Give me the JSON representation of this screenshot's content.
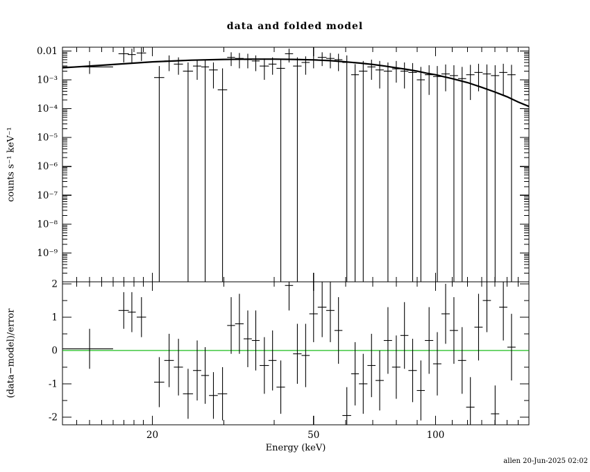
{
  "signature": "allen 20-Jun-2025 02:02",
  "colors": {
    "foreground": "#000000",
    "background": "#ffffff",
    "zero_line": "#00b400"
  },
  "chart_data": [
    {
      "type": "scatter",
      "panel": "data",
      "title": "data and folded model",
      "ylabel": "counts s⁻¹ keV⁻¹",
      "xscale": "log",
      "yscale": "log",
      "xlim": [
        12,
        170
      ],
      "ylim": [
        1e-10,
        0.0135
      ],
      "x_major_ticks": [
        {
          "v": 20,
          "label": "20"
        },
        {
          "v": 50,
          "label": "50"
        },
        {
          "v": 100,
          "label": "100"
        }
      ],
      "x_minor_ticks": [
        13,
        14,
        15,
        16,
        17,
        18,
        19,
        30,
        40,
        60,
        70,
        80,
        90,
        110,
        120,
        130,
        140,
        150,
        160
      ],
      "y_major_ticks": [
        {
          "v": 0.01,
          "label": "0.01"
        },
        {
          "v": 0.001,
          "label": "10⁻³"
        },
        {
          "v": 0.0001,
          "label": "10⁻⁴"
        },
        {
          "v": 1e-05,
          "label": "10⁻⁵"
        },
        {
          "v": 1e-06,
          "label": "10⁻⁶"
        },
        {
          "v": 1e-07,
          "label": "10⁻⁷"
        },
        {
          "v": 1e-08,
          "label": "10⁻⁸"
        },
        {
          "v": 1e-09,
          "label": "10⁻⁹"
        }
      ],
      "points": [
        [
          14,
          2,
          0.0028,
          0.0016,
          0.0045
        ],
        [
          17,
          0.5,
          0.008,
          0.004,
          0.013
        ],
        [
          17.8,
          0.4,
          0.0075,
          0.004,
          0.012
        ],
        [
          18.8,
          0.5,
          0.0085,
          0.0045,
          0.013
        ],
        [
          20.8,
          0.6,
          0.0012,
          1e-12,
          0.003
        ],
        [
          22,
          0.6,
          0.0045,
          0.002,
          0.007
        ],
        [
          23.2,
          0.6,
          0.0035,
          0.0015,
          0.006
        ],
        [
          24.5,
          0.7,
          0.002,
          1e-12,
          0.004
        ],
        [
          25.8,
          0.6,
          0.003,
          0.001,
          0.005
        ],
        [
          27,
          0.6,
          0.0028,
          1e-12,
          0.005
        ],
        [
          28.3,
          0.7,
          0.0022,
          0.0005,
          0.004
        ],
        [
          29.8,
          0.8,
          0.00045,
          1e-12,
          0.0025
        ],
        [
          31.3,
          0.7,
          0.006,
          0.003,
          0.009
        ],
        [
          32.8,
          0.8,
          0.0055,
          0.0025,
          0.0085
        ],
        [
          34.4,
          0.8,
          0.005,
          0.0025,
          0.008
        ],
        [
          36,
          0.8,
          0.0045,
          0.002,
          0.007
        ],
        [
          37.8,
          1,
          0.003,
          0.001,
          0.0055
        ],
        [
          39.6,
          0.9,
          0.0035,
          0.0015,
          0.006
        ],
        [
          41.5,
          1,
          0.0025,
          1e-12,
          0.005
        ],
        [
          43.5,
          1,
          0.008,
          0.004,
          0.012
        ],
        [
          45.6,
          1.1,
          0.003,
          1e-12,
          0.006
        ],
        [
          47.8,
          1.1,
          0.004,
          0.0015,
          0.0065
        ],
        [
          50,
          1.2,
          0.005,
          0.0025,
          0.008
        ],
        [
          52.5,
          1.3,
          0.006,
          0.003,
          0.009
        ],
        [
          55,
          1.3,
          0.0055,
          0.0025,
          0.0085
        ],
        [
          57.6,
          1.3,
          0.005,
          0.002,
          0.008
        ],
        [
          60.4,
          1.5,
          0.004,
          1e-12,
          0.007
        ],
        [
          63.3,
          1.4,
          0.0015,
          1e-12,
          0.0035
        ],
        [
          66.3,
          1.6,
          0.002,
          1e-12,
          0.0045
        ],
        [
          69.5,
          1.6,
          0.0028,
          0.001,
          0.005
        ],
        [
          72.8,
          1.7,
          0.0022,
          0.0005,
          0.0045
        ],
        [
          76.3,
          1.8,
          0.002,
          1e-12,
          0.004
        ],
        [
          80,
          1.9,
          0.0024,
          0.0008,
          0.0045
        ],
        [
          83.8,
          1.9,
          0.002,
          0.0005,
          0.004
        ],
        [
          87.8,
          2.1,
          0.0018,
          1e-12,
          0.0038
        ],
        [
          92,
          2.1,
          0.001,
          1e-12,
          0.0028
        ],
        [
          96.4,
          2.3,
          0.0015,
          0.0003,
          0.0032
        ],
        [
          101,
          2.4,
          0.0013,
          1e-12,
          0.003
        ],
        [
          105.9,
          2.5,
          0.0016,
          0.0004,
          0.0034
        ],
        [
          111,
          2.6,
          0.0014,
          1e-12,
          0.0032
        ],
        [
          116.3,
          2.7,
          0.0011,
          1e-12,
          0.0028
        ],
        [
          121.9,
          2.9,
          0.0015,
          0.0002,
          0.0033
        ],
        [
          127.7,
          3,
          0.0018,
          0.0004,
          0.0036
        ],
        [
          133.9,
          3.1,
          0.0016,
          1e-12,
          0.0034
        ],
        [
          140.3,
          3.3,
          0.0014,
          1e-12,
          0.0032
        ],
        [
          147,
          3.4,
          0.0018,
          0.0003,
          0.0036
        ],
        [
          154,
          3.6,
          0.0015,
          1e-12,
          0.0033
        ]
      ],
      "model": [
        [
          12,
          0.0026
        ],
        [
          15,
          0.0032
        ],
        [
          20,
          0.0042
        ],
        [
          25,
          0.0048
        ],
        [
          30,
          0.0051
        ],
        [
          35,
          0.0052
        ],
        [
          40,
          0.0052
        ],
        [
          45,
          0.0051
        ],
        [
          50,
          0.0049
        ],
        [
          55,
          0.0046
        ],
        [
          60,
          0.0042
        ],
        [
          65,
          0.0038
        ],
        [
          70,
          0.0034
        ],
        [
          75,
          0.003
        ],
        [
          80,
          0.0026
        ],
        [
          85,
          0.0023
        ],
        [
          90,
          0.002
        ],
        [
          95,
          0.0017
        ],
        [
          100,
          0.0015
        ],
        [
          110,
          0.0011
        ],
        [
          120,
          0.0008
        ],
        [
          130,
          0.00055
        ],
        [
          140,
          0.00038
        ],
        [
          150,
          0.00026
        ],
        [
          160,
          0.00017
        ],
        [
          170,
          0.00012
        ]
      ]
    },
    {
      "type": "scatter",
      "panel": "residuals",
      "xlabel": "Energy (keV)",
      "ylabel": "(data−model)/error",
      "xscale": "log",
      "yscale": "linear",
      "xlim": [
        12,
        170
      ],
      "ylim": [
        -2.23,
        2.06
      ],
      "y_major_ticks": [
        {
          "v": -2,
          "label": "-2"
        },
        {
          "v": -1,
          "label": "-1"
        },
        {
          "v": 0,
          "label": "0"
        },
        {
          "v": 1,
          "label": "1"
        },
        {
          "v": 2,
          "label": "2"
        }
      ],
      "y_minor_ticks": [
        -1.5,
        -0.5,
        0.5,
        1.5
      ],
      "zero_line": 0,
      "points": [
        [
          14,
          2,
          0.05,
          0.6
        ],
        [
          17,
          0.5,
          1.2,
          0.55
        ],
        [
          17.8,
          0.4,
          1.15,
          0.6
        ],
        [
          18.8,
          0.5,
          1,
          0.6
        ],
        [
          20.8,
          0.6,
          -0.95,
          0.75
        ],
        [
          22,
          0.6,
          -0.3,
          0.8
        ],
        [
          23.2,
          0.6,
          -0.5,
          0.85
        ],
        [
          24.5,
          0.7,
          -1.3,
          0.75
        ],
        [
          25.8,
          0.6,
          -0.6,
          0.9
        ],
        [
          27,
          0.6,
          -0.75,
          0.85
        ],
        [
          28.3,
          0.7,
          -1.35,
          0.7
        ],
        [
          29.8,
          0.8,
          -1.3,
          0.8
        ],
        [
          31.3,
          0.7,
          0.75,
          0.85
        ],
        [
          32.8,
          0.8,
          0.8,
          0.9
        ],
        [
          34.4,
          0.8,
          0.35,
          0.85
        ],
        [
          36,
          0.8,
          0.3,
          0.9
        ],
        [
          37.8,
          1,
          -0.45,
          0.85
        ],
        [
          39.6,
          0.9,
          -0.3,
          0.9
        ],
        [
          41.5,
          1,
          -1.1,
          0.8
        ],
        [
          43.5,
          1,
          1.95,
          0.75
        ],
        [
          45.6,
          1.1,
          -0.1,
          0.9
        ],
        [
          47.8,
          1.1,
          -0.15,
          0.95
        ],
        [
          50,
          1.2,
          1.1,
          0.85
        ],
        [
          52.5,
          1.3,
          1.3,
          0.9
        ],
        [
          55,
          1.3,
          1.2,
          0.95
        ],
        [
          57.6,
          1.3,
          0.6,
          1
        ],
        [
          60.4,
          1.5,
          -1.95,
          0.85
        ],
        [
          63.3,
          1.4,
          -0.7,
          0.95
        ],
        [
          66.3,
          1.6,
          -1,
          0.9
        ],
        [
          69.5,
          1.6,
          -0.45,
          0.95
        ],
        [
          72.8,
          1.7,
          -0.9,
          0.9
        ],
        [
          76.3,
          1.8,
          0.3,
          1
        ],
        [
          80,
          1.9,
          -0.5,
          0.95
        ],
        [
          83.8,
          1.9,
          0.45,
          1
        ],
        [
          87.8,
          2.1,
          -0.6,
          0.95
        ],
        [
          92,
          2.1,
          -1.2,
          0.9
        ],
        [
          96.4,
          2.3,
          0.3,
          1
        ],
        [
          101,
          2.4,
          -0.4,
          0.95
        ],
        [
          105.9,
          2.5,
          1.1,
          0.9
        ],
        [
          111,
          2.6,
          0.6,
          1
        ],
        [
          116.3,
          2.7,
          -0.3,
          1
        ],
        [
          121.9,
          2.9,
          -1.7,
          0.9
        ],
        [
          127.7,
          3,
          0.7,
          1
        ],
        [
          133.9,
          3.1,
          1.5,
          0.95
        ],
        [
          140.3,
          3.3,
          -1.9,
          0.85
        ],
        [
          147,
          3.4,
          1.3,
          1
        ],
        [
          154,
          3.6,
          0.1,
          1
        ]
      ]
    }
  ]
}
